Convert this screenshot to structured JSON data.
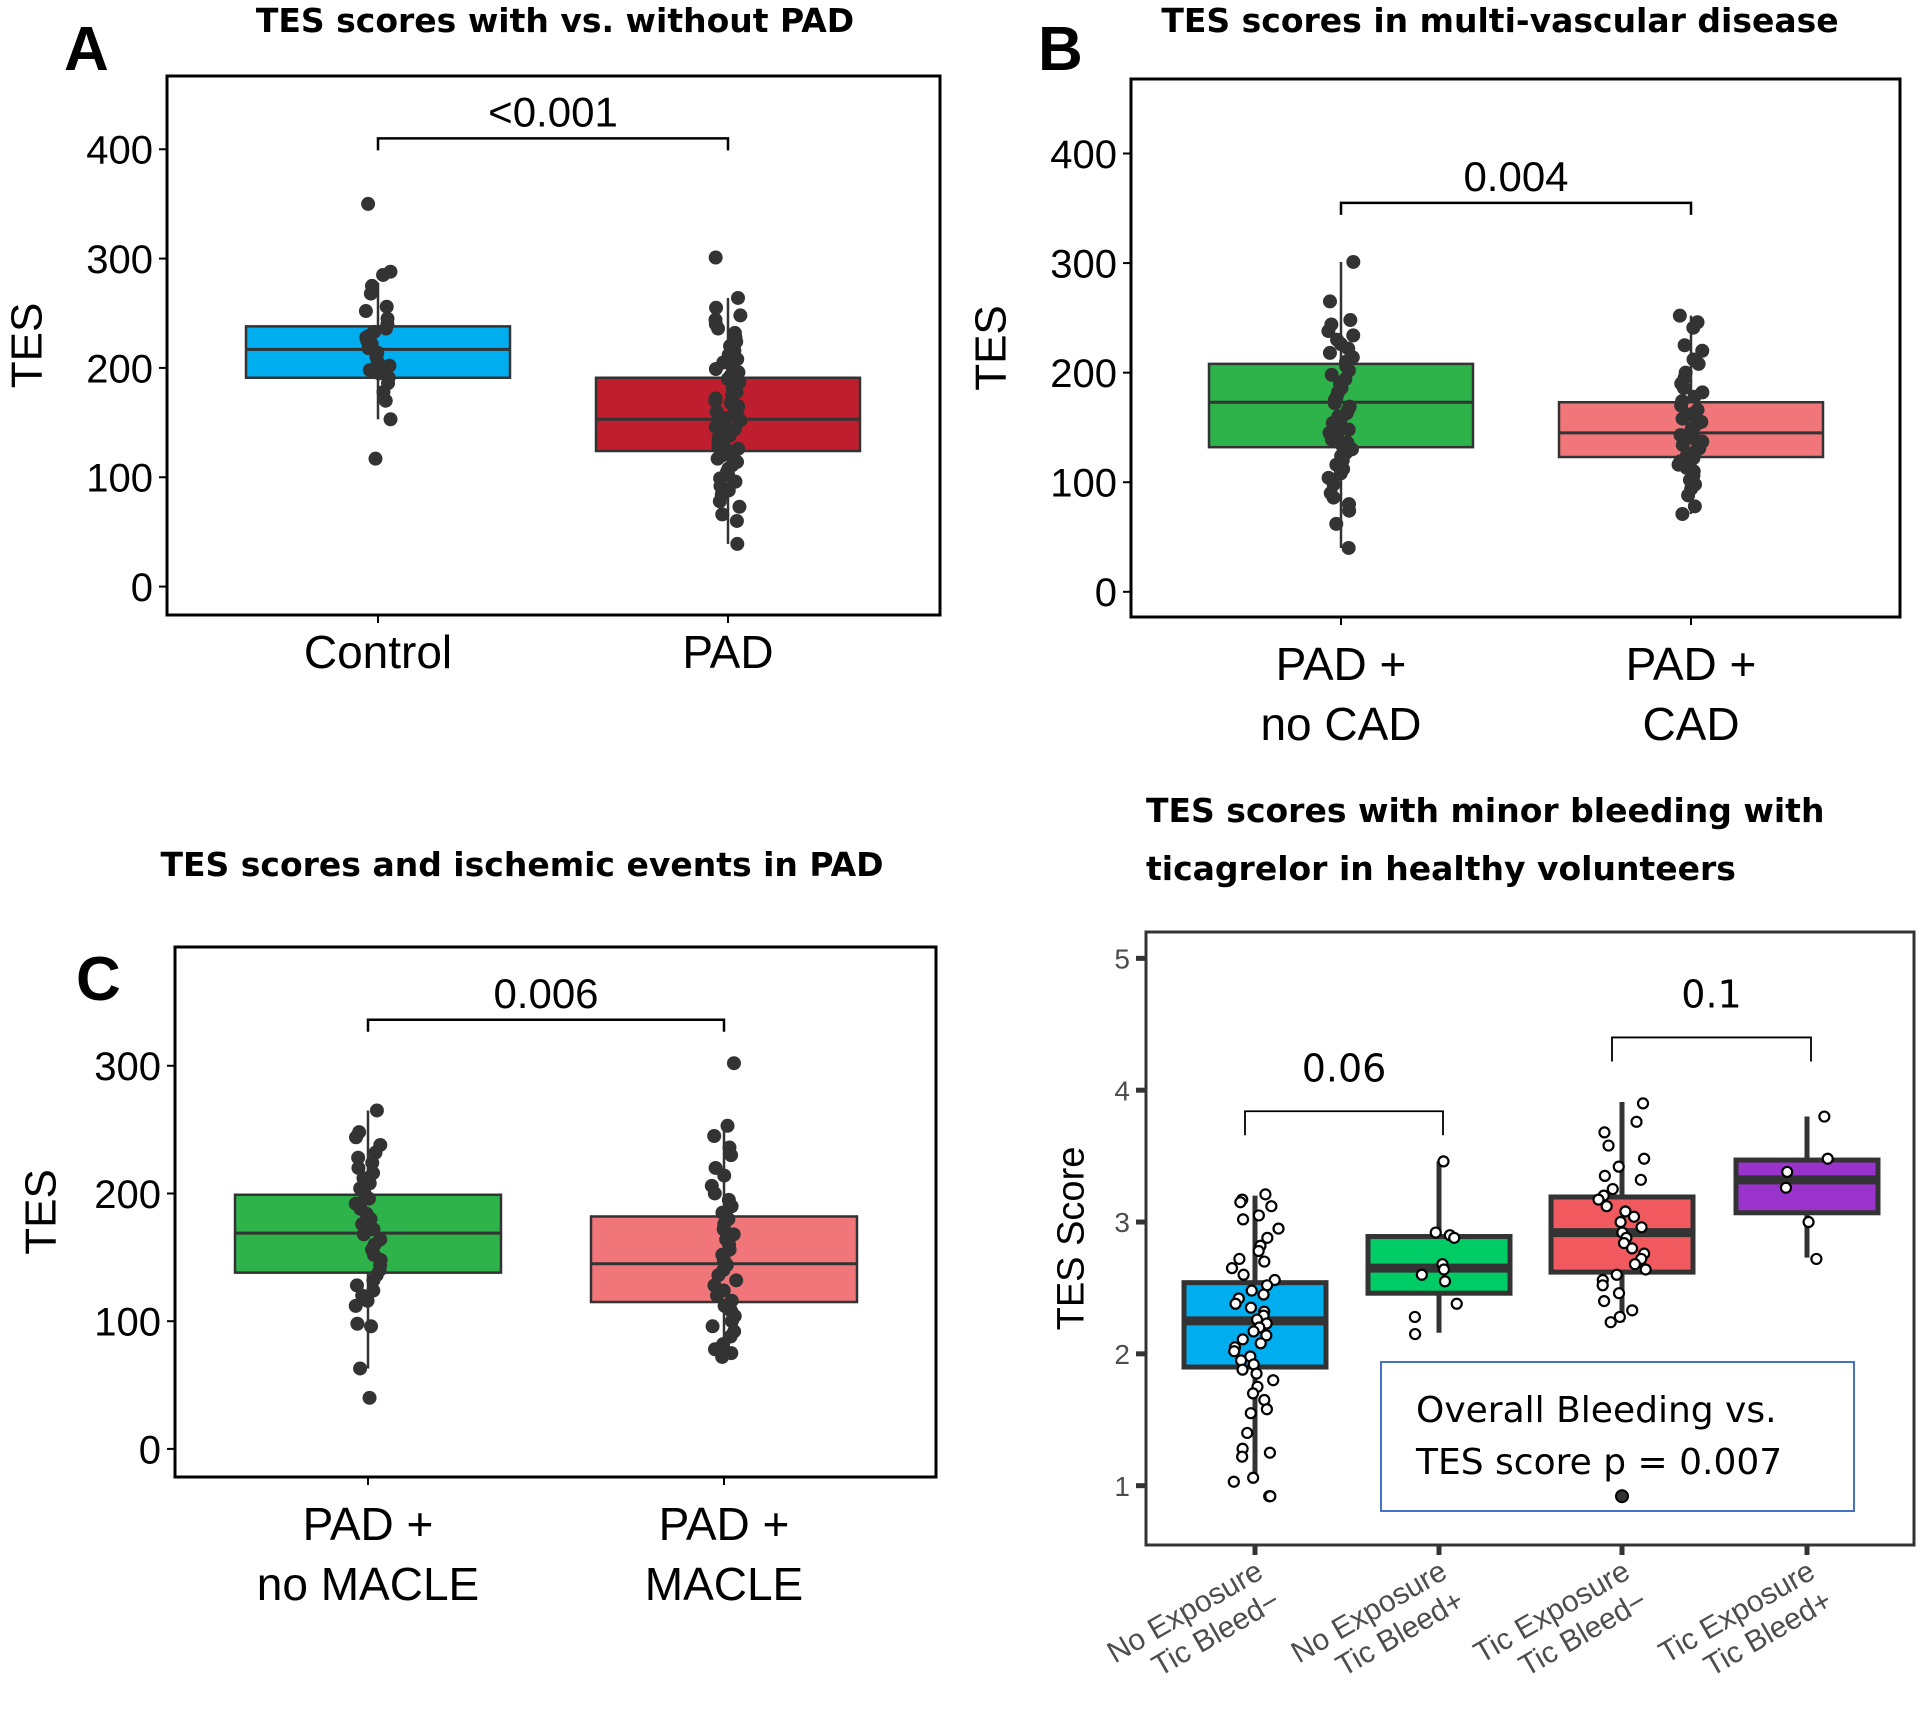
{
  "figure": {
    "panels": {
      "A": {
        "letter": "A",
        "title": "TES scores with vs. without PAD"
      },
      "B": {
        "letter": "B",
        "title": "TES scores in multi-vascular disease"
      },
      "C": {
        "letter": "C",
        "title": "TES scores and ischemic events in PAD"
      },
      "D": {
        "letter": "",
        "title_line1": "TES scores with minor bleeding with",
        "title_line2": "ticagrelor in healthy volunteers"
      }
    }
  },
  "chart_data": [
    {
      "id": "A",
      "type": "box",
      "title": "TES scores with vs. without PAD",
      "xlabel": "",
      "ylabel": "TES",
      "ylim": [
        -26,
        467
      ],
      "yticks": [
        0,
        100,
        200,
        300,
        400
      ],
      "grid": false,
      "categories": [
        "Control",
        "PAD"
      ],
      "series": [
        {
          "name": "Control",
          "color": "#00AEEF",
          "q1": 191,
          "median": 217,
          "q3": 238,
          "whisker_low": 153,
          "whisker_high": 278,
          "points": [
            350,
            288,
            285,
            275,
            268,
            256,
            252,
            245,
            240,
            236,
            233,
            230,
            228,
            225,
            222,
            218,
            214,
            210,
            205,
            202,
            198,
            195,
            191,
            186,
            178,
            170,
            153,
            117
          ]
        },
        {
          "name": "PAD",
          "color": "#BE1E2D",
          "q1": 124,
          "median": 153,
          "q3": 191,
          "whisker_low": 39,
          "whisker_high": 264,
          "points": [
            301,
            264,
            255,
            248,
            244,
            240,
            236,
            232,
            228,
            224,
            220,
            216,
            212,
            208,
            205,
            202,
            199,
            196,
            193,
            190,
            187,
            184,
            181,
            178,
            175,
            172,
            170,
            168,
            165,
            162,
            160,
            158,
            156,
            154,
            152,
            150,
            148,
            146,
            144,
            142,
            140,
            138,
            136,
            134,
            132,
            130,
            128,
            126,
            124,
            122,
            120,
            117,
            114,
            111,
            108,
            105,
            102,
            99,
            96,
            92,
            88,
            84,
            78,
            73,
            66,
            60,
            39
          ]
        }
      ],
      "comparisons": [
        {
          "from": "Control",
          "to": "PAD",
          "y": 410,
          "label": "<0.001"
        }
      ]
    },
    {
      "id": "B",
      "type": "box",
      "title": "TES scores in multi-vascular disease",
      "xlabel": "",
      "ylabel": "TES",
      "ylim": [
        -23,
        468
      ],
      "yticks": [
        0,
        100,
        200,
        300,
        400
      ],
      "grid": false,
      "categories": [
        "PAD +\nno CAD",
        "PAD +\nCAD"
      ],
      "series": [
        {
          "name": "PAD + no CAD",
          "color": "#2DB34A",
          "q1": 132,
          "median": 173,
          "q3": 208,
          "whisker_low": 40,
          "whisker_high": 301,
          "points": [
            301,
            265,
            248,
            244,
            238,
            234,
            230,
            226,
            222,
            218,
            214,
            210,
            206,
            202,
            198,
            194,
            190,
            186,
            182,
            178,
            175,
            172,
            169,
            166,
            163,
            160,
            157,
            154,
            151,
            148,
            145,
            142,
            139,
            136,
            133,
            130,
            127,
            124,
            120,
            116,
            112,
            108,
            104,
            98,
            90,
            86,
            80,
            74,
            62,
            40
          ]
        },
        {
          "name": "PAD + CAD",
          "color": "#F0767A",
          "q1": 123,
          "median": 145,
          "q3": 173,
          "whisker_low": 71,
          "whisker_high": 252,
          "points": [
            252,
            246,
            241,
            225,
            220,
            212,
            208,
            200,
            195,
            190,
            186,
            182,
            178,
            174,
            170,
            166,
            162,
            158,
            155,
            152,
            149,
            146,
            143,
            140,
            137,
            134,
            131,
            128,
            125,
            122,
            119,
            116,
            113,
            110,
            106,
            102,
            98,
            94,
            88,
            78,
            71
          ]
        }
      ],
      "comparisons": [
        {
          "from": "PAD +\nno CAD",
          "to": "PAD +\nCAD",
          "y": 355,
          "label": "0.004"
        }
      ]
    },
    {
      "id": "C",
      "type": "box",
      "title": "TES scores and ischemic events in PAD",
      "xlabel": "",
      "ylabel": "TES",
      "ylim": [
        -22,
        393
      ],
      "yticks": [
        0,
        100,
        200,
        300
      ],
      "grid": false,
      "categories": [
        "PAD +\nno MACLE",
        "PAD +\nMACLE"
      ],
      "series": [
        {
          "name": "PAD + no MACLE",
          "color": "#2DB34A",
          "q1": 138,
          "median": 169,
          "q3": 199,
          "whisker_low": 63,
          "whisker_high": 265,
          "points": [
            265,
            248,
            244,
            238,
            232,
            228,
            224,
            220,
            216,
            212,
            208,
            204,
            200,
            196,
            192,
            188,
            184,
            180,
            176,
            172,
            168,
            164,
            160,
            156,
            152,
            148,
            144,
            140,
            136,
            132,
            128,
            124,
            120,
            116,
            112,
            98,
            96,
            63,
            40
          ]
        },
        {
          "name": "PAD + MACLE",
          "color": "#F0767A",
          "q1": 115,
          "median": 145,
          "q3": 182,
          "whisker_low": 75,
          "whisker_high": 253,
          "points": [
            302,
            253,
            245,
            236,
            230,
            220,
            214,
            206,
            200,
            195,
            190,
            185,
            180,
            176,
            172,
            168,
            164,
            160,
            156,
            152,
            148,
            144,
            140,
            136,
            132,
            128,
            124,
            120,
            116,
            112,
            108,
            104,
            100,
            96,
            92,
            88,
            82,
            78,
            75,
            72
          ]
        }
      ],
      "comparisons": [
        {
          "from": "PAD +\nno MACLE",
          "to": "PAD +\nMACLE",
          "y": 336,
          "label": "0.006"
        }
      ]
    },
    {
      "id": "D",
      "type": "box",
      "title": "TES scores with minor bleeding with ticagrelor in healthy volunteers",
      "xlabel": "",
      "ylabel": "TES Score",
      "ylim": [
        0.55,
        5.2
      ],
      "yticks": [
        1,
        2,
        3,
        4,
        5
      ],
      "grid": false,
      "categories": [
        "No Exposure\nTic Bleed−",
        "No Exposure\nTic Bleed+",
        "Tic Exposure\nTic Bleed−",
        "Tic Exposure\nTic Bleed+"
      ],
      "series": [
        {
          "name": "No Exposure Tic Bleed−",
          "color": "#00AEEF",
          "q1": 1.9,
          "median": 2.25,
          "q3": 2.54,
          "whisker_low": 1.05,
          "whisker_high": 3.2,
          "points": [
            3.21,
            3.17,
            3.15,
            3.12,
            3.05,
            3.02,
            2.95,
            2.88,
            2.82,
            2.78,
            2.72,
            2.7,
            2.65,
            2.6,
            2.56,
            2.52,
            2.48,
            2.45,
            2.42,
            2.38,
            2.35,
            2.32,
            2.29,
            2.26,
            2.23,
            2.2,
            2.17,
            2.14,
            2.11,
            2.08,
            2.05,
            2.02,
            1.98,
            1.95,
            1.92,
            1.88,
            1.85,
            1.8,
            1.75,
            1.7,
            1.65,
            1.58,
            1.55,
            1.4,
            1.28,
            1.25,
            1.22,
            1.06,
            1.03,
            0.92,
            0.92
          ]
        },
        {
          "name": "No Exposure Tic Bleed+",
          "color": "#00CC66",
          "q1": 2.46,
          "median": 2.65,
          "q3": 2.89,
          "whisker_low": 2.16,
          "whisker_high": 3.46,
          "points": [
            3.46,
            2.92,
            2.9,
            2.88,
            2.68,
            2.64,
            2.6,
            2.55,
            2.38,
            2.28,
            2.15
          ]
        },
        {
          "name": "Tic Exposure Tic Bleed−",
          "color": "#F0595E",
          "q1": 2.62,
          "median": 2.92,
          "q3": 3.19,
          "whisker_low": 2.24,
          "whisker_high": 3.91,
          "points": [
            3.9,
            3.76,
            3.68,
            3.58,
            3.48,
            3.42,
            3.35,
            3.32,
            3.25,
            3.2,
            3.17,
            3.12,
            3.08,
            3.04,
            3.0,
            2.96,
            2.92,
            2.88,
            2.84,
            2.8,
            2.76,
            2.72,
            2.68,
            2.64,
            2.6,
            2.56,
            2.52,
            2.46,
            2.4,
            2.33,
            2.28,
            2.24,
            0.92
          ]
        },
        {
          "name": "Tic Exposure Tic Bleed+",
          "color": "#9933CC",
          "q1": 3.07,
          "median": 3.32,
          "q3": 3.47,
          "whisker_low": 2.73,
          "whisker_high": 3.8,
          "points": [
            3.8,
            3.48,
            3.38,
            3.26,
            3.0,
            2.72
          ]
        }
      ],
      "comparisons": [
        {
          "from": "No Exposure\nTic Bleed−",
          "to": "No Exposure\nTic Bleed+",
          "y": 3.84,
          "label": "0.06"
        },
        {
          "from": "Tic Exposure\nTic Bleed−",
          "to": "Tic Exposure\nTic Bleed+",
          "y": 4.4,
          "label": "0.1"
        }
      ],
      "annotation": {
        "line1": "Overall Bleeding vs.",
        "line2": "TES score p = 0.007",
        "border_color": "#4472C4"
      }
    }
  ]
}
